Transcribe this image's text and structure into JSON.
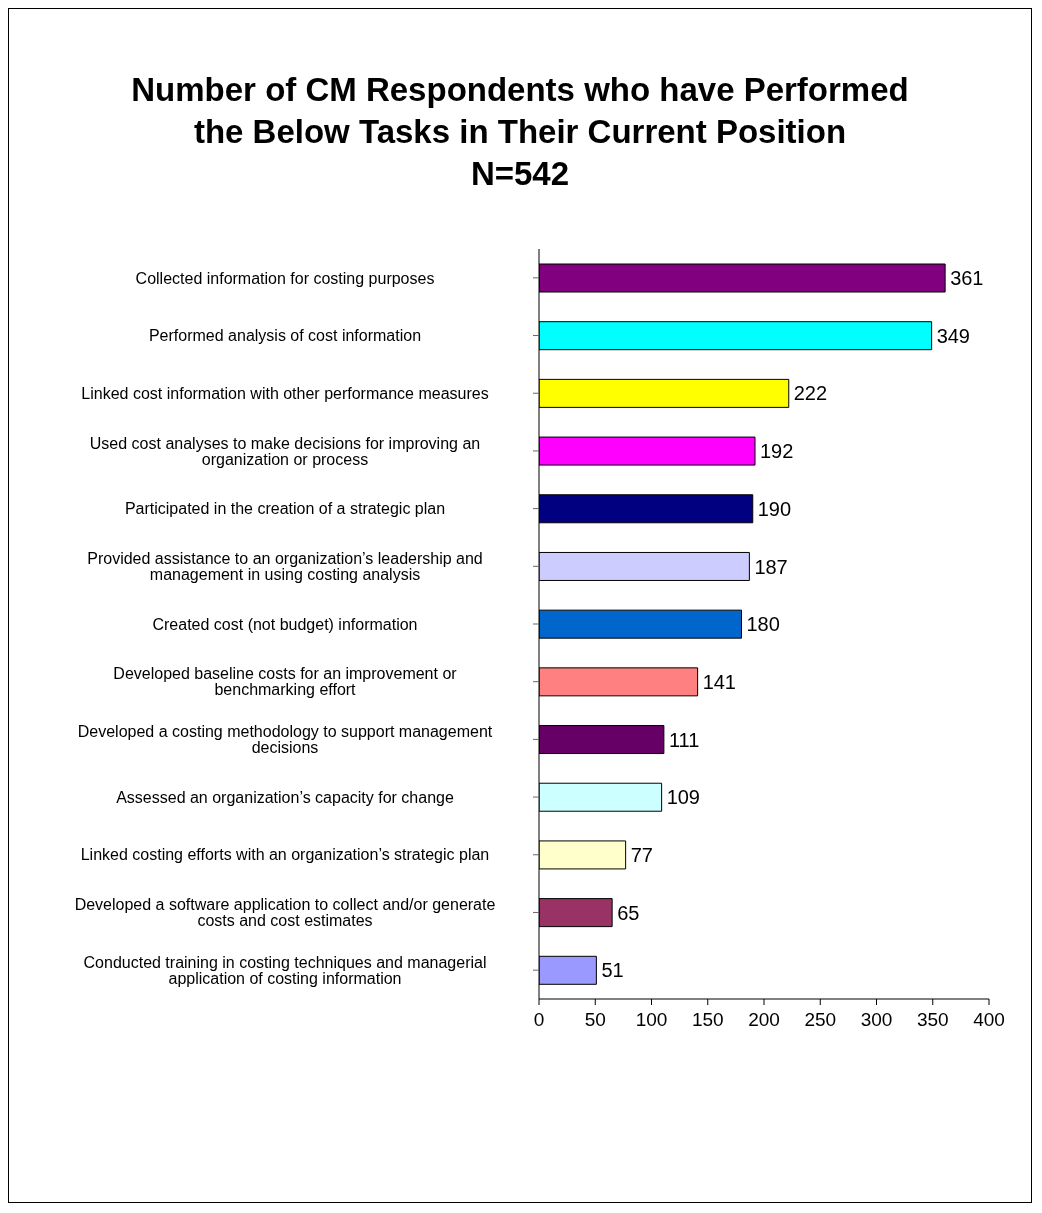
{
  "chart_data": {
    "type": "bar",
    "orientation": "horizontal",
    "title": "Number of CM Respondents who have Performed the Below Tasks in Their Current Position\nN=542",
    "categories": [
      "Collected information for costing purposes",
      "Performed analysis of cost information",
      "Linked cost information with other performance measures",
      "Used cost analyses to make decisions for improving an organization or process",
      "Participated in the creation of a strategic plan",
      "Provided assistance to an organization’s leadership and management in using costing analysis",
      "Created cost (not budget) information",
      "Developed baseline costs for an improvement or benchmarking effort",
      "Developed a costing methodology to support management decisions",
      "Assessed an organization’s capacity for change",
      "Linked costing efforts with an organization’s strategic plan",
      "Developed a software application to collect and/or generate costs and cost estimates",
      "Conducted training in costing techniques and managerial application of costing information"
    ],
    "values": [
      361,
      349,
      222,
      192,
      190,
      187,
      180,
      141,
      111,
      109,
      77,
      65,
      51
    ],
    "colors": [
      "#800080",
      "#00ffff",
      "#ffff00",
      "#ff00ff",
      "#000080",
      "#ccccff",
      "#0066cc",
      "#ff8080",
      "#660066",
      "#ccffff",
      "#ffffcc",
      "#993366",
      "#9999ff"
    ],
    "xlim": [
      0,
      400
    ],
    "xticks": [
      0,
      50,
      100,
      150,
      200,
      250,
      300,
      350,
      400
    ],
    "data_labels": true,
    "grid": false
  }
}
